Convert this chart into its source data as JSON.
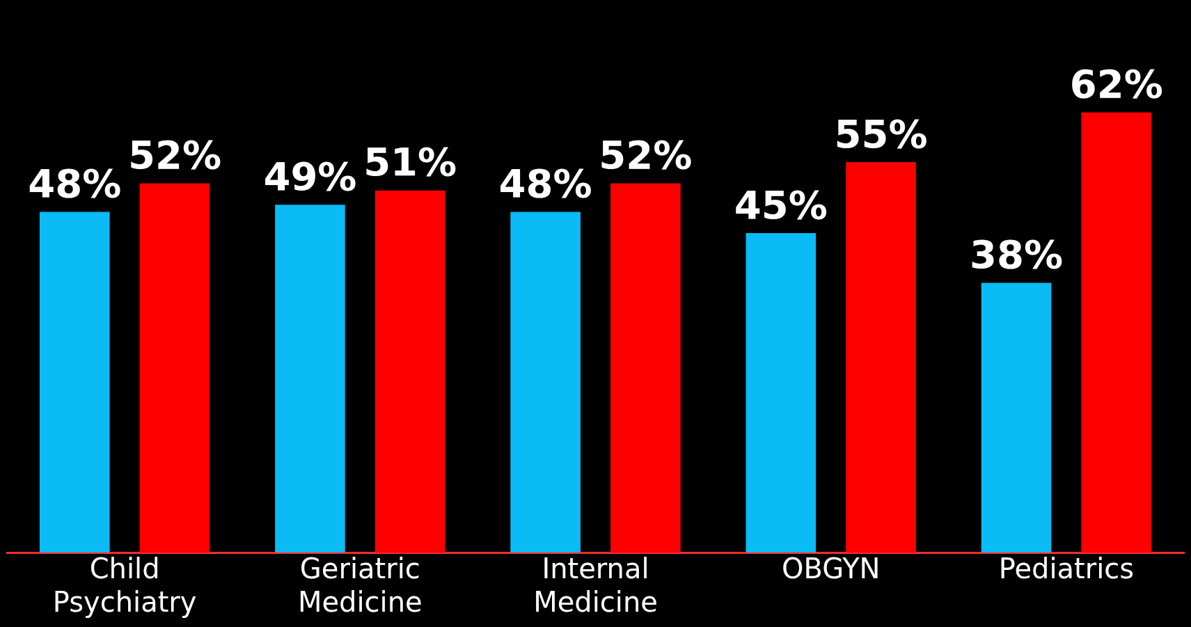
{
  "chart_data": {
    "type": "bar",
    "categories": [
      "Child Psychiatry",
      "Geriatric Medicine",
      "Internal Medicine",
      "OBGYN",
      "Pediatrics"
    ],
    "series": [
      {
        "color": "#0abbf5",
        "values": [
          48,
          49,
          48,
          45,
          38
        ],
        "value_labels": [
          "48%",
          "49%",
          "48%",
          "45%",
          "38%"
        ]
      },
      {
        "color": "#fe0000",
        "values": [
          52,
          51,
          52,
          55,
          62
        ],
        "value_labels": [
          "52%",
          "51%",
          "52%",
          "55%",
          "62%"
        ]
      }
    ],
    "tick_labels": "x",
    "legend": false
  }
}
